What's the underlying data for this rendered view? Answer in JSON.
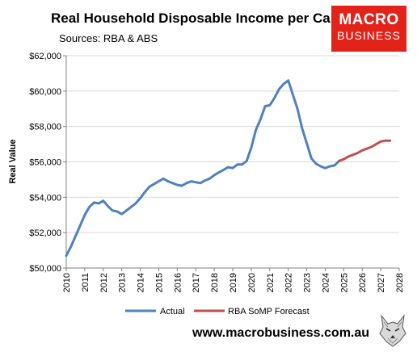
{
  "header": {
    "title": "Real Household Disposable Income per Capita",
    "subtitle": "Sources: RBA & ABS"
  },
  "logo": {
    "line1": "MACRO",
    "line2": "BUSINESS",
    "color": "#e2231a"
  },
  "footer": {
    "url": "www.macrobusiness.com.au",
    "mascot_icon": "wolf-head-icon"
  },
  "chart_data": {
    "type": "line",
    "title": "Real Household Disposable Income per Capita",
    "xlabel": "",
    "ylabel": "Real Value",
    "xlim": [
      2010,
      2028
    ],
    "ylim": [
      50000,
      62000
    ],
    "x_ticks": [
      "2010",
      "2011",
      "2012",
      "2013",
      "2014",
      "2015",
      "2016",
      "2017",
      "2018",
      "2019",
      "2020",
      "2021",
      "2022",
      "2023",
      "2024",
      "2025",
      "2026",
      "2027",
      "2028"
    ],
    "y_ticks": [
      {
        "value": 50000,
        "label": "$50,000"
      },
      {
        "value": 52000,
        "label": "$52,000"
      },
      {
        "value": 54000,
        "label": "$54,000"
      },
      {
        "value": 56000,
        "label": "$56,000"
      },
      {
        "value": 58000,
        "label": "$58,000"
      },
      {
        "value": 60000,
        "label": "$60,000"
      },
      {
        "value": 62000,
        "label": "$62,000"
      }
    ],
    "grid": "horizontal",
    "legend_position": "bottom",
    "series": [
      {
        "name": "Actual",
        "color": "#4f81bd",
        "points": [
          [
            2010.0,
            50700
          ],
          [
            2010.25,
            51200
          ],
          [
            2010.5,
            51800
          ],
          [
            2010.75,
            52400
          ],
          [
            2011.0,
            53000
          ],
          [
            2011.25,
            53450
          ],
          [
            2011.5,
            53700
          ],
          [
            2011.75,
            53650
          ],
          [
            2012.0,
            53800
          ],
          [
            2012.25,
            53500
          ],
          [
            2012.5,
            53250
          ],
          [
            2012.75,
            53200
          ],
          [
            2013.0,
            53050
          ],
          [
            2013.25,
            53250
          ],
          [
            2013.5,
            53450
          ],
          [
            2013.75,
            53650
          ],
          [
            2014.0,
            53950
          ],
          [
            2014.25,
            54300
          ],
          [
            2014.5,
            54600
          ],
          [
            2014.75,
            54750
          ],
          [
            2015.0,
            54900
          ],
          [
            2015.25,
            55050
          ],
          [
            2015.5,
            54900
          ],
          [
            2015.75,
            54800
          ],
          [
            2016.0,
            54700
          ],
          [
            2016.25,
            54650
          ],
          [
            2016.5,
            54800
          ],
          [
            2016.75,
            54900
          ],
          [
            2017.0,
            54850
          ],
          [
            2017.25,
            54800
          ],
          [
            2017.5,
            54950
          ],
          [
            2017.75,
            55050
          ],
          [
            2018.0,
            55250
          ],
          [
            2018.25,
            55400
          ],
          [
            2018.5,
            55550
          ],
          [
            2018.75,
            55700
          ],
          [
            2019.0,
            55650
          ],
          [
            2019.25,
            55850
          ],
          [
            2019.5,
            55850
          ],
          [
            2019.75,
            56050
          ],
          [
            2020.0,
            56800
          ],
          [
            2020.25,
            57800
          ],
          [
            2020.5,
            58400
          ],
          [
            2020.75,
            59150
          ],
          [
            2021.0,
            59200
          ],
          [
            2021.25,
            59600
          ],
          [
            2021.5,
            60100
          ],
          [
            2021.75,
            60400
          ],
          [
            2022.0,
            60600
          ],
          [
            2022.25,
            59800
          ],
          [
            2022.5,
            59000
          ],
          [
            2022.75,
            57900
          ],
          [
            2023.0,
            57050
          ],
          [
            2023.25,
            56200
          ],
          [
            2023.5,
            55900
          ],
          [
            2023.75,
            55750
          ],
          [
            2024.0,
            55650
          ],
          [
            2024.25,
            55750
          ],
          [
            2024.5,
            55800
          ],
          [
            2024.75,
            56050
          ]
        ]
      },
      {
        "name": "RBA SoMP Forecast",
        "color": "#c0504d",
        "points": [
          [
            2024.75,
            56050
          ],
          [
            2025.0,
            56150
          ],
          [
            2025.25,
            56300
          ],
          [
            2025.5,
            56400
          ],
          [
            2025.75,
            56500
          ],
          [
            2026.0,
            56650
          ],
          [
            2026.25,
            56750
          ],
          [
            2026.5,
            56850
          ],
          [
            2026.75,
            57000
          ],
          [
            2027.0,
            57150
          ],
          [
            2027.25,
            57200
          ],
          [
            2027.5,
            57200
          ]
        ]
      }
    ]
  }
}
